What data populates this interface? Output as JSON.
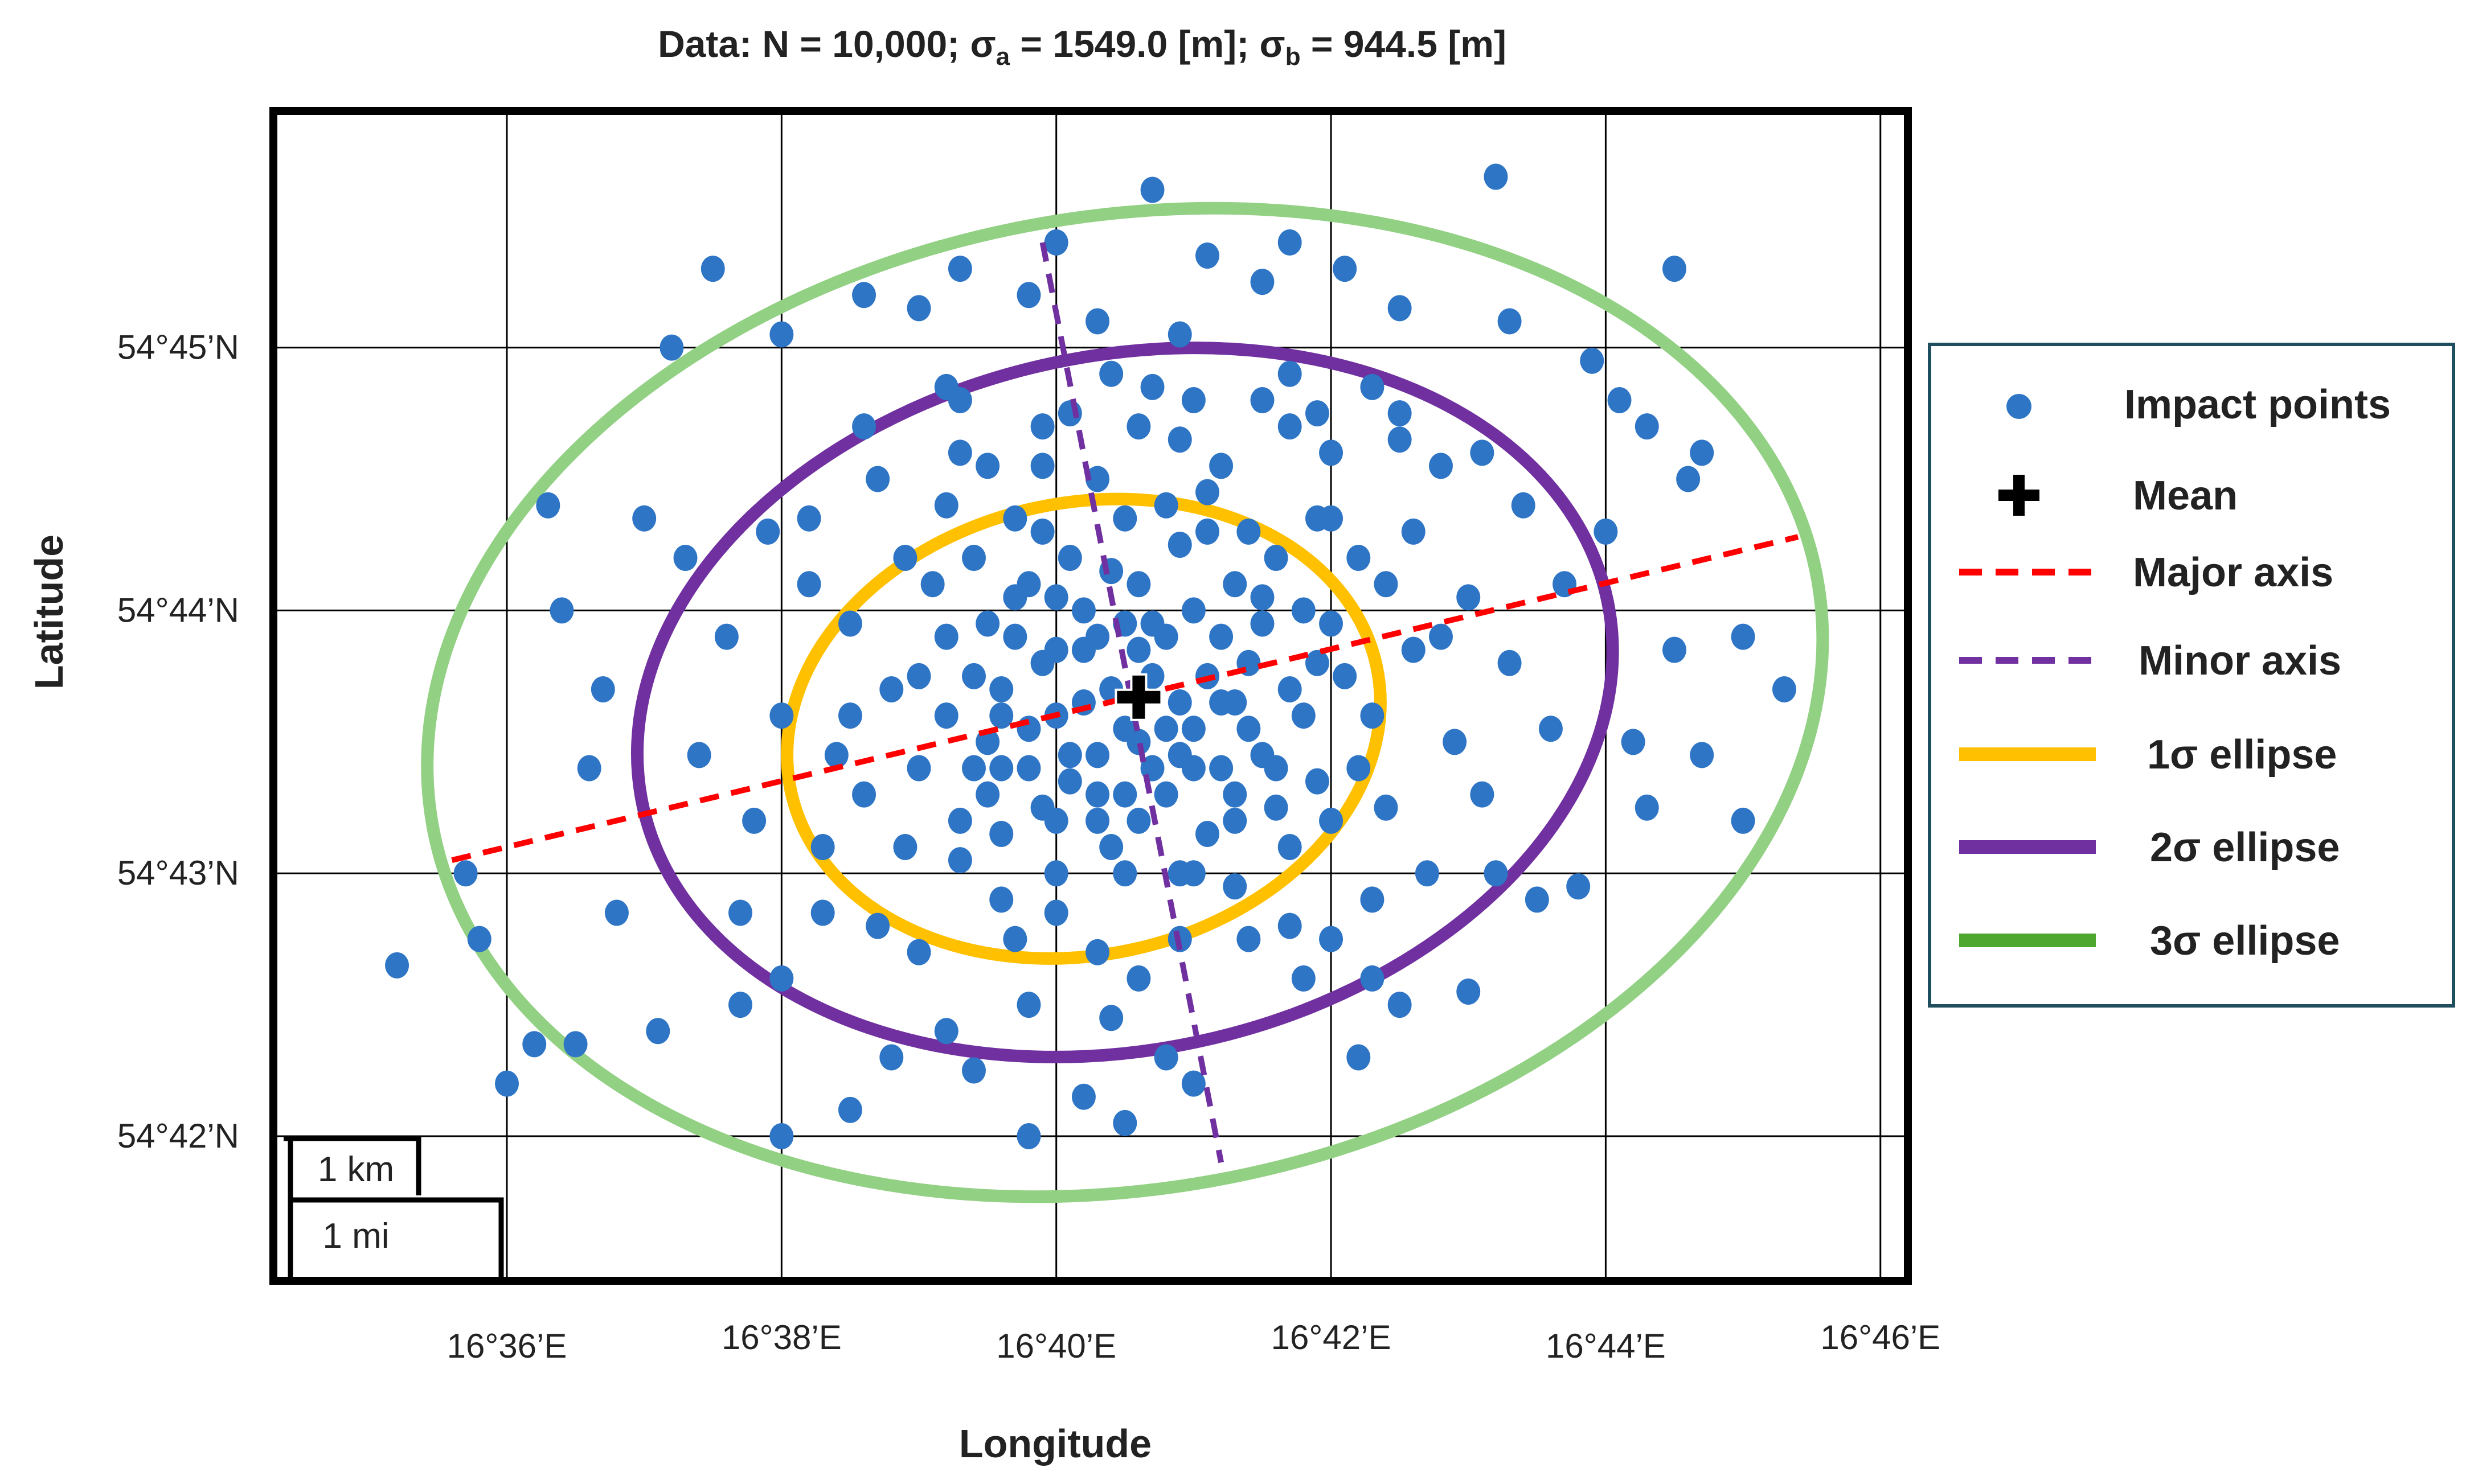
{
  "chart_data": {
    "type": "scatter",
    "title": {
      "prefix": "Data: N = 10,000; ",
      "sigma_a_label": "σ",
      "sigma_a_sub": "a",
      "sigma_a_value": " = 1549.0 [m]; ",
      "sigma_b_label": "σ",
      "sigma_b_sub": "b",
      "sigma_b_value": " = 944.5 [m]"
    },
    "xlabel": "Longitude",
    "ylabel": "Latitude",
    "x_ticks": [
      {
        "value": 36,
        "label": "16°36’E"
      },
      {
        "value": 38,
        "label": "16°38’E"
      },
      {
        "value": 40,
        "label": "16°40’E"
      },
      {
        "value": 42,
        "label": "16°42’E"
      },
      {
        "value": 44,
        "label": "16°44’E"
      },
      {
        "value": 46,
        "label": "16°46’E"
      }
    ],
    "y_ticks": [
      {
        "value": 42,
        "label": "54°42’N"
      },
      {
        "value": 43,
        "label": "54°43’N"
      },
      {
        "value": 44,
        "label": "54°44’N"
      },
      {
        "value": 45,
        "label": "54°45’N"
      }
    ],
    "xlim": [
      34.3,
      46.2
    ],
    "ylim": [
      41.45,
      45.9
    ],
    "grid": true,
    "mean": {
      "lon": 40.6,
      "lat": 43.67
    },
    "ellipses": [
      {
        "name": "1σ ellipse",
        "color": "#FFC000",
        "center": [
          40.2,
          43.55
        ],
        "semi_major": 2.18,
        "semi_minor": 0.86,
        "angle_deg": 12
      },
      {
        "name": "2σ ellipse",
        "color": "#7030A0",
        "center": [
          40.5,
          43.65
        ],
        "semi_major": 3.59,
        "semi_minor": 1.32,
        "angle_deg": 12
      },
      {
        "name": "3σ ellipse",
        "color": "#92D083",
        "center": [
          40.5,
          43.65
        ],
        "semi_major": 5.12,
        "semi_minor": 1.85,
        "angle_deg": 10
      }
    ],
    "major_axis": {
      "name": "Major axis",
      "color": "#FF0000",
      "from": [
        35.6,
        43.05
      ],
      "to": [
        45.4,
        44.28
      ]
    },
    "minor_axis": {
      "name": "Minor axis",
      "color": "#7030A0",
      "from": [
        39.9,
        45.4
      ],
      "to": [
        41.2,
        41.9
      ]
    },
    "scale_bars": [
      {
        "label": "1 km"
      },
      {
        "label": "1 mi"
      }
    ],
    "series": [
      {
        "name": "Impact points",
        "color": "#2E75C6",
        "points": [
          [
            41.2,
            43.65
          ],
          [
            40.3,
            43.2
          ],
          [
            41.5,
            43.95
          ],
          [
            40.0,
            43.85
          ],
          [
            41.0,
            43.4
          ],
          [
            39.5,
            43.5
          ],
          [
            40.6,
            44.1
          ],
          [
            39.2,
            43.9
          ],
          [
            41.8,
            43.6
          ],
          [
            40.9,
            43.0
          ],
          [
            39.6,
            43.15
          ],
          [
            40.5,
            44.35
          ],
          [
            41.6,
            44.2
          ],
          [
            39.0,
            43.4
          ],
          [
            42.0,
            43.95
          ],
          [
            40.2,
            44.0
          ],
          [
            39.8,
            43.55
          ],
          [
            41.3,
            43.3
          ],
          [
            40.7,
            43.75
          ],
          [
            39.4,
            44.2
          ],
          [
            42.2,
            43.4
          ],
          [
            40.1,
            43.35
          ],
          [
            41.7,
            43.1
          ],
          [
            39.9,
            44.3
          ],
          [
            40.8,
            43.55
          ],
          [
            38.8,
            43.7
          ],
          [
            42.4,
            44.1
          ],
          [
            41.1,
            44.45
          ],
          [
            39.3,
            43.05
          ],
          [
            40.4,
            43.7
          ],
          [
            40.0,
            43.6
          ],
          [
            41.4,
            43.8
          ],
          [
            39.7,
            43.9
          ],
          [
            40.9,
            44.25
          ],
          [
            41.9,
            43.35
          ],
          [
            39.1,
            44.1
          ],
          [
            40.6,
            43.2
          ],
          [
            42.1,
            43.75
          ],
          [
            39.5,
            43.3
          ],
          [
            41.2,
            43.9
          ],
          [
            40.3,
            43.45
          ],
          [
            41.0,
            43.55
          ],
          [
            39.8,
            44.1
          ],
          [
            40.7,
            43.4
          ],
          [
            41.5,
            43.45
          ],
          [
            40.2,
            43.85
          ],
          [
            39.6,
            43.7
          ],
          [
            41.8,
            44.0
          ],
          [
            40.4,
            43.1
          ],
          [
            39.2,
            43.6
          ],
          [
            42.3,
            43.6
          ],
          [
            40.1,
            44.2
          ],
          [
            41.3,
            44.1
          ],
          [
            39.4,
            43.4
          ],
          [
            40.8,
            43.9
          ],
          [
            41.6,
            43.25
          ],
          [
            39.9,
            43.25
          ],
          [
            40.5,
            43.55
          ],
          [
            41.1,
            43.15
          ],
          [
            39.0,
            43.75
          ],
          [
            38.5,
            43.95
          ],
          [
            42.6,
            43.85
          ],
          [
            38.6,
            43.3
          ],
          [
            42.4,
            43.25
          ],
          [
            39.2,
            44.4
          ],
          [
            41.9,
            44.35
          ],
          [
            40.0,
            42.85
          ],
          [
            41.3,
            42.95
          ],
          [
            38.9,
            44.2
          ],
          [
            42.6,
            44.3
          ],
          [
            38.4,
            43.45
          ],
          [
            43.0,
            44.05
          ],
          [
            39.6,
            42.9
          ],
          [
            41.7,
            42.8
          ],
          [
            40.3,
            44.5
          ],
          [
            41.2,
            44.55
          ],
          [
            38.3,
            43.1
          ],
          [
            42.9,
            43.5
          ],
          [
            39.0,
            42.7
          ],
          [
            42.3,
            42.9
          ],
          [
            38.2,
            44.1
          ],
          [
            43.1,
            43.3
          ],
          [
            39.5,
            44.55
          ],
          [
            42.0,
            44.6
          ],
          [
            40.6,
            42.6
          ],
          [
            41.0,
            44.8
          ],
          [
            38.0,
            43.6
          ],
          [
            43.3,
            43.8
          ],
          [
            38.7,
            44.5
          ],
          [
            42.8,
            44.55
          ],
          [
            39.8,
            42.5
          ],
          [
            41.8,
            42.6
          ],
          [
            37.9,
            44.3
          ],
          [
            43.4,
            44.4
          ],
          [
            38.3,
            42.85
          ],
          [
            43.2,
            43.0
          ],
          [
            39.2,
            42.4
          ],
          [
            42.5,
            42.5
          ],
          [
            40.4,
            42.45
          ],
          [
            41.5,
            44.8
          ],
          [
            37.8,
            43.2
          ],
          [
            43.6,
            43.55
          ],
          [
            38.6,
            44.7
          ],
          [
            42.5,
            44.75
          ],
          [
            39.9,
            44.7
          ],
          [
            40.8,
            42.3
          ],
          [
            37.6,
            43.9
          ],
          [
            43.7,
            44.1
          ],
          [
            38.0,
            42.6
          ],
          [
            43.5,
            42.9
          ],
          [
            37.4,
            43.45
          ],
          [
            44.2,
            43.5
          ],
          [
            38.8,
            42.3
          ],
          [
            42.2,
            42.3
          ],
          [
            39.3,
            44.8
          ],
          [
            41.7,
            44.9
          ],
          [
            37.3,
            44.2
          ],
          [
            44.0,
            44.3
          ],
          [
            37.7,
            42.5
          ],
          [
            43.8,
            42.95
          ],
          [
            36.7,
            43.7
          ],
          [
            44.5,
            43.85
          ],
          [
            36.4,
            44.0
          ],
          [
            44.6,
            44.5
          ],
          [
            36.6,
            43.4
          ],
          [
            44.7,
            43.45
          ],
          [
            37.0,
            44.35
          ],
          [
            44.1,
            44.8
          ],
          [
            36.8,
            42.85
          ],
          [
            44.3,
            43.25
          ],
          [
            37.1,
            42.4
          ],
          [
            43.0,
            42.55
          ],
          [
            36.2,
            42.35
          ],
          [
            45.0,
            43.9
          ],
          [
            35.7,
            43.0
          ],
          [
            45.3,
            43.7
          ],
          [
            35.2,
            42.65
          ],
          [
            45.0,
            43.2
          ],
          [
            37.2,
            45.0
          ],
          [
            44.5,
            45.3
          ],
          [
            38.0,
            45.05
          ],
          [
            43.2,
            45.65
          ],
          [
            36.0,
            42.2
          ],
          [
            44.7,
            44.6
          ],
          [
            36.3,
            44.4
          ],
          [
            43.3,
            45.1
          ],
          [
            37.5,
            45.3
          ],
          [
            40.7,
            45.6
          ],
          [
            39.0,
            45.15
          ],
          [
            41.1,
            45.35
          ],
          [
            38.0,
            42.0
          ],
          [
            39.8,
            42.0
          ],
          [
            40.2,
            42.15
          ],
          [
            41.0,
            42.2
          ],
          [
            40.5,
            42.05
          ],
          [
            38.5,
            42.1
          ],
          [
            39.4,
            42.25
          ],
          [
            42.3,
            42.6
          ],
          [
            35.8,
            42.75
          ],
          [
            36.5,
            42.35
          ],
          [
            43.9,
            44.95
          ],
          [
            42.5,
            45.15
          ],
          [
            40.0,
            45.4
          ],
          [
            39.8,
            45.2
          ],
          [
            41.7,
            45.4
          ],
          [
            42.1,
            45.3
          ],
          [
            41.5,
            45.25
          ],
          [
            40.3,
            45.1
          ],
          [
            39.3,
            45.3
          ],
          [
            38.6,
            45.2
          ],
          [
            40.9,
            45.05
          ],
          [
            42.3,
            44.85
          ],
          [
            40.7,
            44.85
          ],
          [
            40.6,
            44.7
          ],
          [
            39.2,
            44.85
          ],
          [
            38.2,
            44.35
          ],
          [
            41.9,
            44.75
          ],
          [
            43.1,
            44.6
          ],
          [
            44.3,
            44.7
          ],
          [
            37.7,
            42.85
          ],
          [
            40.0,
            43.0
          ],
          [
            40.5,
            43.0
          ],
          [
            41.0,
            43.0
          ],
          [
            40.3,
            42.7
          ],
          [
            40.9,
            42.75
          ],
          [
            41.4,
            42.75
          ],
          [
            39.7,
            42.75
          ],
          [
            38.7,
            42.8
          ],
          [
            42.0,
            42.75
          ],
          [
            42.7,
            43.0
          ],
          [
            40.1,
            44.75
          ],
          [
            40.9,
            44.65
          ],
          [
            41.7,
            44.7
          ],
          [
            40.4,
            44.9
          ],
          [
            39.9,
            44.55
          ],
          [
            42.0,
            44.35
          ],
          [
            42.8,
            43.9
          ],
          [
            38.5,
            43.6
          ],
          [
            39.3,
            44.6
          ],
          [
            42.5,
            44.65
          ],
          [
            41.4,
            44.3
          ],
          [
            39.7,
            44.35
          ],
          [
            40.5,
            43.95
          ],
          [
            40.8,
            43.3
          ],
          [
            40.1,
            43.45
          ],
          [
            41.4,
            43.55
          ],
          [
            40.9,
            43.65
          ],
          [
            40.3,
            43.9
          ],
          [
            41.0,
            44.0
          ],
          [
            39.6,
            43.4
          ],
          [
            41.7,
            43.7
          ],
          [
            40.6,
            43.5
          ],
          [
            40.2,
            43.65
          ],
          [
            39.9,
            43.8
          ],
          [
            41.2,
            43.4
          ],
          [
            40.7,
            43.95
          ],
          [
            40.4,
            44.15
          ],
          [
            41.5,
            44.05
          ],
          [
            39.7,
            44.05
          ],
          [
            40.0,
            44.05
          ],
          [
            41.1,
            44.3
          ],
          [
            40.8,
            44.4
          ],
          [
            39.4,
            43.75
          ],
          [
            39.6,
            43.6
          ],
          [
            41.9,
            43.8
          ],
          [
            42.2,
            44.2
          ],
          [
            40.5,
            43.3
          ],
          [
            41.3,
            43.2
          ],
          [
            40.0,
            43.2
          ],
          [
            39.8,
            43.4
          ],
          [
            41.6,
            43.4
          ],
          [
            41.3,
            43.65
          ],
          [
            40.6,
            43.85
          ],
          [
            40.9,
            43.45
          ],
          [
            40.3,
            43.3
          ],
          [
            41.1,
            43.75
          ],
          [
            39.5,
            43.95
          ],
          [
            39.3,
            43.2
          ],
          [
            38.9,
            43.1
          ],
          [
            42.0,
            43.2
          ]
        ]
      }
    ],
    "legend": {
      "position": "right",
      "items": [
        {
          "label": "Impact points",
          "kind": "dot",
          "color": "#2E75C6"
        },
        {
          "label": "Mean",
          "kind": "cross",
          "color": "#000000"
        },
        {
          "label": "Major axis",
          "kind": "dash",
          "color": "#FF0000"
        },
        {
          "label": "Minor axis",
          "kind": "dash",
          "color": "#7030A0"
        },
        {
          "label": "1σ ellipse",
          "kind": "line",
          "color": "#FFC000"
        },
        {
          "label": "2σ ellipse",
          "kind": "line",
          "color": "#7030A0"
        },
        {
          "label": "3σ ellipse",
          "kind": "line",
          "color": "#4EA72E"
        }
      ]
    }
  }
}
